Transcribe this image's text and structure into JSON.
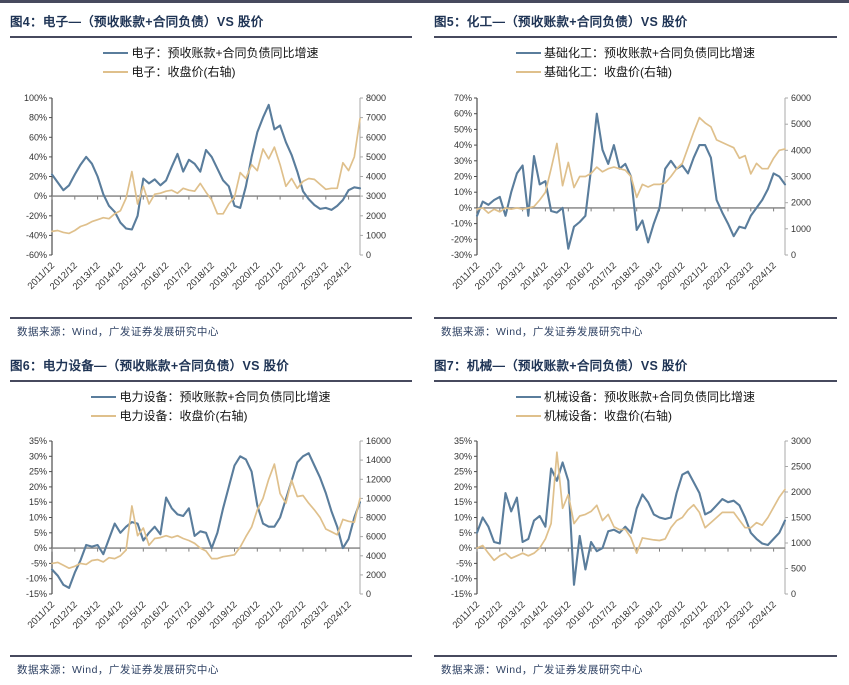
{
  "page": {
    "background": "#ffffff"
  },
  "colors": {
    "series_blue": "#5a7d9c",
    "series_tan": "#dfc08c",
    "axis_text": "#333333",
    "left_spine": "#4d4d4d",
    "right_spine": "#a8a8a8",
    "zero_line": "#7f7f7f",
    "title_text": "#1f3455",
    "footer_text": "#2e4163"
  },
  "source_note": "数据来源：Wind，广发证券发展研究中心",
  "chart_data": [
    {
      "id": "fig4",
      "type": "line",
      "title": "图4：电子—（预收账款+合同负债）VS 股价",
      "legend": [
        "电子：预收账款+合同负债同比增速",
        "电子：收盘价(右轴)"
      ],
      "x_start": "2011/12",
      "points_per_year": 4,
      "n_points": 55,
      "x_tick_labels": [
        "2011/12",
        "2012/12",
        "2013/12",
        "2014/12",
        "2015/12",
        "2016/12",
        "2017/12",
        "2018/12",
        "2019/12",
        "2020/12",
        "2021/12",
        "2022/12",
        "2023/12",
        "2024/12"
      ],
      "tick_indices": [
        0,
        4,
        8,
        12,
        16,
        20,
        24,
        28,
        32,
        36,
        40,
        44,
        48,
        52
      ],
      "left_axis": {
        "min": -60,
        "max": 100,
        "step": 20,
        "unit": "%"
      },
      "right_axis": {
        "min": 0,
        "max": 8000,
        "step": 1000
      },
      "series": [
        {
          "name": "电子：预收账款+合同负债同比增速",
          "axis": "left",
          "color_key": "series_blue",
          "values": [
            22,
            14,
            6,
            11,
            22,
            32,
            40,
            33,
            20,
            2,
            -10,
            -16,
            -27,
            -33,
            -34,
            -20,
            18,
            13,
            17,
            11,
            16,
            30,
            43,
            25,
            37,
            33,
            25,
            47,
            40,
            28,
            16,
            10,
            -10,
            -12,
            10,
            40,
            65,
            80,
            93,
            68,
            72,
            55,
            42,
            25,
            5,
            -3,
            -9,
            -13,
            -12,
            -14,
            -10,
            -4,
            6,
            9,
            8
          ]
        },
        {
          "name": "电子：收盘价(右轴)",
          "axis": "right",
          "color_key": "series_tan",
          "values": [
            1200,
            1250,
            1150,
            1100,
            1250,
            1450,
            1550,
            1700,
            1800,
            1900,
            1850,
            2100,
            2250,
            2900,
            4250,
            2600,
            3500,
            2600,
            3100,
            3150,
            3250,
            3300,
            3150,
            3400,
            3300,
            3250,
            3650,
            3200,
            2800,
            2100,
            2100,
            2600,
            2950,
            4200,
            3900,
            4600,
            4300,
            5400,
            4900,
            5500,
            4600,
            3500,
            3900,
            3400,
            3750,
            3900,
            3850,
            3600,
            3350,
            3400,
            3400,
            4700,
            4300,
            5000,
            6950
          ]
        }
      ]
    },
    {
      "id": "fig5",
      "type": "line",
      "title": "图5：化工—（预收账款+合同负债）VS 股价",
      "legend": [
        "基础化工：预收账款+合同负债同比增速",
        "基础化工：收盘价(右轴)"
      ],
      "x_start": "2011/12",
      "points_per_year": 4,
      "n_points": 55,
      "x_tick_labels": [
        "2011/12",
        "2012/12",
        "2013/12",
        "2014/12",
        "2015/12",
        "2016/12",
        "2017/12",
        "2018/12",
        "2019/12",
        "2020/12",
        "2021/12",
        "2022/12",
        "2023/12",
        "2024/12"
      ],
      "tick_indices": [
        0,
        4,
        8,
        12,
        16,
        20,
        24,
        28,
        32,
        36,
        40,
        44,
        48,
        52
      ],
      "left_axis": {
        "min": -30,
        "max": 70,
        "step": 10,
        "unit": "%"
      },
      "right_axis": {
        "min": 0,
        "max": 6000,
        "step": 1000
      },
      "series": [
        {
          "name": "基础化工：预收账款+合同负债同比增速",
          "axis": "left",
          "color_key": "series_blue",
          "values": [
            -5,
            4,
            2,
            5,
            7,
            -5,
            10,
            22,
            27,
            -5,
            33,
            15,
            17,
            -2,
            -3,
            0,
            -26,
            -12,
            -9,
            -5,
            25,
            60,
            37,
            28,
            40,
            25,
            28,
            20,
            -14,
            -8,
            -22,
            -10,
            0,
            25,
            30,
            25,
            27,
            22,
            32,
            40,
            40,
            32,
            5,
            -3,
            -10,
            -18,
            -12,
            -13,
            -5,
            0,
            5,
            12,
            22,
            20,
            15
          ]
        },
        {
          "name": "基础化工：收盘价(右轴)",
          "axis": "right",
          "color_key": "series_tan",
          "values": [
            1750,
            1800,
            1600,
            1750,
            1650,
            1800,
            1750,
            1800,
            1750,
            1800,
            1850,
            2100,
            2400,
            3300,
            4260,
            2650,
            3540,
            2580,
            3000,
            3000,
            3120,
            3360,
            3180,
            3300,
            3360,
            3300,
            3240,
            3000,
            2200,
            2700,
            2600,
            2700,
            2700,
            2750,
            3000,
            3300,
            3500,
            4100,
            4700,
            5250,
            5050,
            4900,
            4400,
            4300,
            4200,
            4100,
            3700,
            3800,
            3100,
            3500,
            3300,
            3300,
            3700,
            4000,
            4050
          ]
        }
      ]
    },
    {
      "id": "fig6",
      "type": "line",
      "title": "图6：电力设备—（预收账款+合同负债）VS 股价",
      "legend": [
        "电力设备：预收账款+合同负债同比增速",
        "电力设备：收盘价(右轴)"
      ],
      "x_start": "2011/12",
      "points_per_year": 4,
      "n_points": 55,
      "x_tick_labels": [
        "2011/12",
        "2012/12",
        "2013/12",
        "2014/12",
        "2015/12",
        "2016/12",
        "2017/12",
        "2018/12",
        "2019/12",
        "2020/12",
        "2021/12",
        "2022/12",
        "2023/12",
        "2024/12"
      ],
      "tick_indices": [
        0,
        4,
        8,
        12,
        16,
        20,
        24,
        28,
        32,
        36,
        40,
        44,
        48,
        52
      ],
      "left_axis": {
        "min": -15,
        "max": 35,
        "step": 5,
        "unit": "%"
      },
      "right_axis": {
        "min": 0,
        "max": 16000,
        "step": 2000
      },
      "series": [
        {
          "name": "电力设备：预收账款+合同负债同比增速",
          "axis": "left",
          "color_key": "series_blue",
          "values": [
            -7,
            -9,
            -12,
            -13,
            -8,
            -4,
            1,
            0.5,
            1,
            -2,
            3,
            8,
            5,
            7,
            8.5,
            8,
            2.5,
            5,
            7,
            4.5,
            16.5,
            13,
            11,
            10.5,
            13,
            4,
            5.5,
            5,
            0,
            5,
            13,
            20,
            27,
            30,
            29,
            25,
            14,
            8,
            7,
            7,
            10,
            16,
            22,
            28,
            30,
            31,
            27,
            23,
            18,
            12,
            7,
            0,
            3,
            10,
            15
          ]
        },
        {
          "name": "电力设备：收盘价(右轴)",
          "axis": "right",
          "color_key": "series_tan",
          "values": [
            3200,
            3300,
            3000,
            2700,
            2900,
            3200,
            3100,
            3500,
            3600,
            3360,
            3800,
            3700,
            4000,
            4600,
            9200,
            6100,
            6900,
            5100,
            5800,
            5900,
            6100,
            5900,
            6100,
            5800,
            5600,
            5300,
            4800,
            4500,
            3700,
            3700,
            3900,
            4000,
            4100,
            4900,
            6000,
            7000,
            8800,
            10000,
            12000,
            13580,
            10500,
            9500,
            11900,
            10200,
            10300,
            9500,
            8800,
            8000,
            6800,
            6500,
            6200,
            7800,
            7600,
            7500,
            10000
          ]
        }
      ]
    },
    {
      "id": "fig7",
      "type": "line",
      "title": "图7：机械—（预收账款+合同负债）VS 股价",
      "legend": [
        "机械设备：预收账款+合同负债同比增速",
        "机械设备：收盘价(右轴)"
      ],
      "x_start": "2011/12",
      "points_per_year": 4,
      "n_points": 55,
      "x_tick_labels": [
        "2011/12",
        "2012/12",
        "2013/12",
        "2014/12",
        "2015/12",
        "2016/12",
        "2017/12",
        "2018/12",
        "2019/12",
        "2020/12",
        "2021/12",
        "2022/12",
        "2023/12",
        "2024/12"
      ],
      "tick_indices": [
        0,
        4,
        8,
        12,
        16,
        20,
        24,
        28,
        32,
        36,
        40,
        44,
        48,
        52
      ],
      "left_axis": {
        "min": -15,
        "max": 35,
        "step": 5,
        "unit": "%"
      },
      "right_axis": {
        "min": 0,
        "max": 3000,
        "step": 500
      },
      "series": [
        {
          "name": "机械设备：预收账款+合同负债同比增速",
          "axis": "left",
          "color_key": "series_blue",
          "values": [
            5,
            10,
            7,
            2,
            1.5,
            18,
            12,
            16.5,
            2,
            3,
            9,
            10.5,
            7,
            26,
            22,
            28,
            22,
            -12,
            4,
            -7,
            2,
            -1,
            0,
            5.5,
            6,
            5,
            7,
            5,
            13,
            17.5,
            15,
            11,
            10,
            9.5,
            10,
            18,
            24,
            25,
            21.5,
            18,
            11,
            12,
            14,
            16,
            15,
            15.5,
            14,
            10,
            5,
            3,
            1.5,
            1,
            3,
            5,
            9
          ]
        },
        {
          "name": "机械设备：收盘价(右轴)",
          "axis": "right",
          "color_key": "series_tan",
          "values": [
            900,
            950,
            800,
            660,
            750,
            800,
            700,
            750,
            800,
            750,
            800,
            900,
            1080,
            1380,
            2780,
            1680,
            1950,
            1380,
            1530,
            1560,
            1620,
            1740,
            1440,
            1560,
            1320,
            1260,
            1270,
            1100,
            800,
            1100,
            1080,
            1060,
            1050,
            1080,
            1300,
            1440,
            1500,
            1650,
            1750,
            1600,
            1300,
            1400,
            1500,
            1600,
            1600,
            1600,
            1450,
            1300,
            1300,
            1400,
            1350,
            1500,
            1700,
            1900,
            2050
          ]
        }
      ]
    }
  ]
}
